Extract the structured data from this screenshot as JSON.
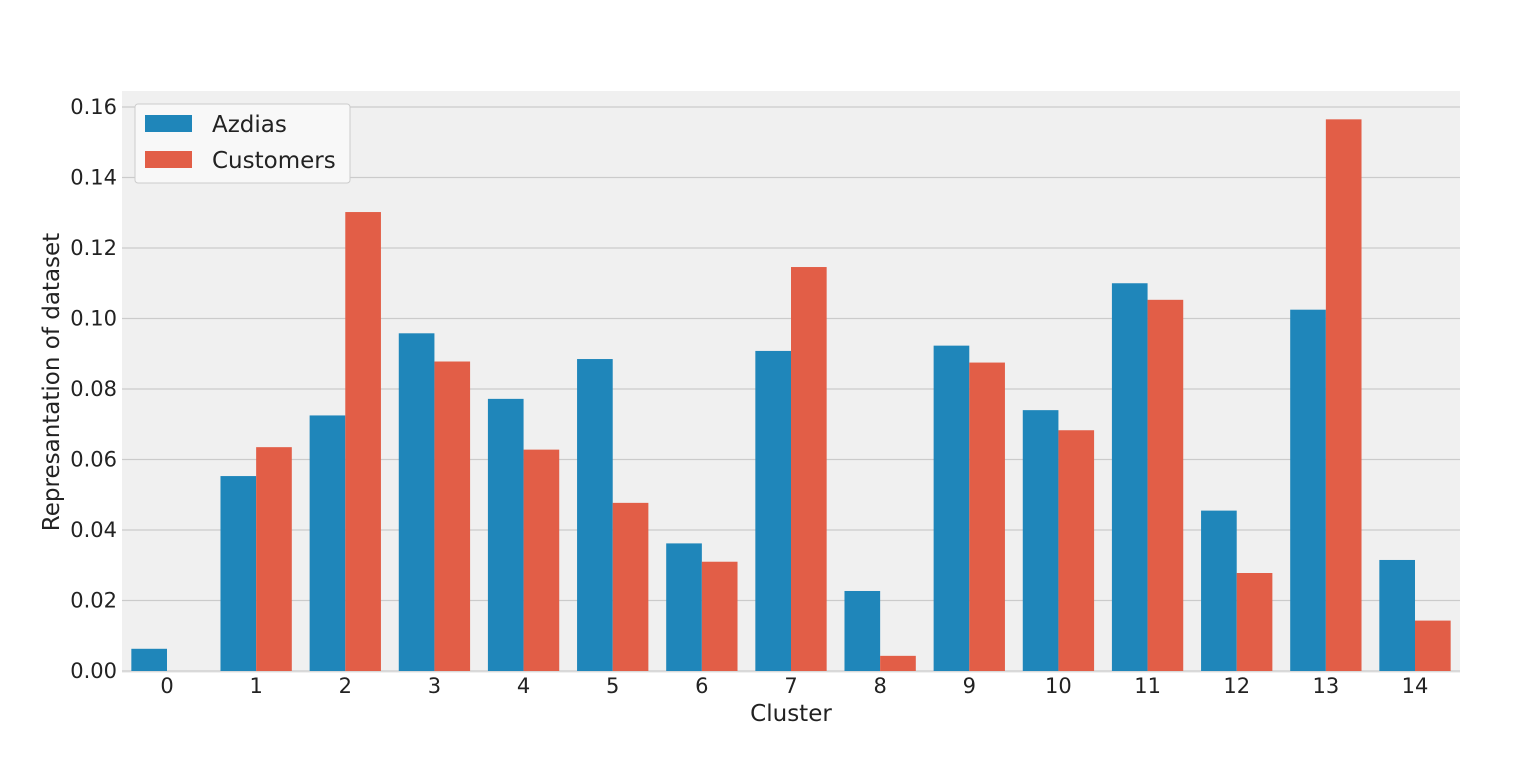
{
  "chart_data": {
    "type": "bar",
    "title": "",
    "xlabel": "Cluster",
    "ylabel": "Represantation of dataset",
    "categories": [
      "0",
      "1",
      "2",
      "3",
      "4",
      "5",
      "6",
      "7",
      "8",
      "9",
      "10",
      "11",
      "12",
      "13",
      "14"
    ],
    "series": [
      {
        "name": "Azdias",
        "color": "#1f86ba",
        "values": [
          0.0063,
          0.0553,
          0.0725,
          0.0958,
          0.0772,
          0.0885,
          0.0362,
          0.0908,
          0.0227,
          0.0923,
          0.074,
          0.11,
          0.0455,
          0.1025,
          0.0315
        ]
      },
      {
        "name": "Customers",
        "color": "#e25e47",
        "values": [
          0.0,
          0.0635,
          0.1302,
          0.0878,
          0.0628,
          0.0477,
          0.031,
          0.1146,
          0.0043,
          0.0875,
          0.0683,
          0.1053,
          0.0278,
          0.1565,
          0.0143
        ]
      }
    ],
    "ylim": [
      0,
      0.165
    ],
    "yticks": [
      "0.00",
      "0.02",
      "0.04",
      "0.06",
      "0.08",
      "0.10",
      "0.12",
      "0.14",
      "0.16"
    ],
    "grid": "horizontal",
    "legend_position": "top-left",
    "background_color": "#f0f0f0",
    "grid_color": "#cbcbcb"
  }
}
